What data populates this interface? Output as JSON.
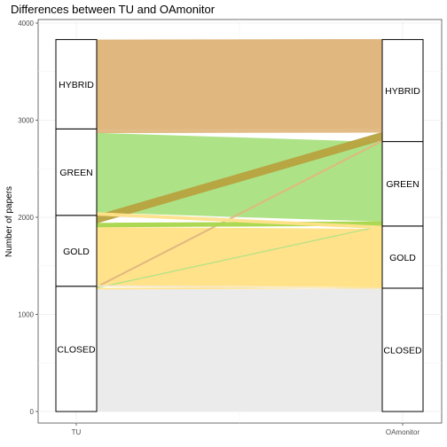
{
  "chart_data": {
    "type": "alluvial",
    "title": "Differences between TU and OAmonitor",
    "xlabel": "",
    "ylabel": "Number of papers",
    "axes": [
      "TU",
      "OAmonitor"
    ],
    "ylim": [
      0,
      4000
    ],
    "yticks": [
      0,
      1000,
      2000,
      3000,
      4000
    ],
    "grid": true,
    "strata": {
      "TU": [
        {
          "name": "CLOSED",
          "value": 1290
        },
        {
          "name": "GOLD",
          "value": 730
        },
        {
          "name": "GREEN",
          "value": 890
        },
        {
          "name": "HYBRID",
          "value": 920
        }
      ],
      "OAmonitor": [
        {
          "name": "CLOSED",
          "value": 1270
        },
        {
          "name": "GOLD",
          "value": 640
        },
        {
          "name": "GREEN",
          "value": 870
        },
        {
          "name": "HYBRID",
          "value": 1050
        }
      ]
    },
    "flows": [
      {
        "from": "CLOSED",
        "to": "CLOSED",
        "value": 1260,
        "color": "#ebebeb"
      },
      {
        "from": "CLOSED",
        "to": "GOLD",
        "value": 10,
        "color": "#ffe28a"
      },
      {
        "from": "CLOSED",
        "to": "GREEN",
        "value": 5,
        "color": "#aee286"
      },
      {
        "from": "CLOSED",
        "to": "HYBRID",
        "value": 15,
        "color": "#e0b77f"
      },
      {
        "from": "GOLD",
        "to": "CLOSED",
        "value": 10,
        "color": "#f5e7c4"
      },
      {
        "from": "GOLD",
        "to": "GOLD",
        "value": 600,
        "color": "#ffe28a"
      },
      {
        "from": "GOLD",
        "to": "GREEN",
        "value": 40,
        "color": "#a9d64a"
      },
      {
        "from": "GOLD",
        "to": "HYBRID",
        "value": 80,
        "color": "#b7a23e"
      },
      {
        "from": "GREEN",
        "to": "GOLD",
        "value": 30,
        "color": "#ffe28a"
      },
      {
        "from": "GREEN",
        "to": "GREEN",
        "value": 820,
        "color": "#aee286"
      },
      {
        "from": "GREEN",
        "to": "HYBRID",
        "value": 40,
        "color": "#e0b77f"
      },
      {
        "from": "HYBRID",
        "to": "HYBRID",
        "value": 920,
        "color": "#e0b77f"
      }
    ]
  }
}
